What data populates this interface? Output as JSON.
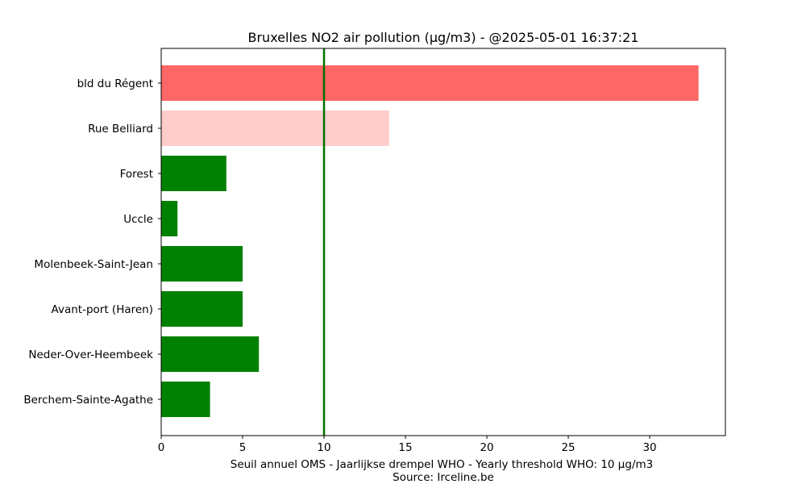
{
  "chart_data": {
    "type": "bar",
    "orientation": "horizontal",
    "title": "Bruxelles NO2 air pollution (µg/m3) - @2025-05-01 16:37:21",
    "xlabel_line1": "Seuil annuel OMS - Jaarlijkse drempel WHO - Yearly threshold WHO: 10 µg/m3",
    "xlabel_line2": "Source: Irceline.be",
    "xlim": [
      0,
      34.65
    ],
    "xticks": [
      "0",
      "5",
      "10",
      "15",
      "20",
      "25",
      "30"
    ],
    "xtick_values": [
      0,
      5,
      10,
      15,
      20,
      25,
      30
    ],
    "threshold": 10,
    "threshold_color": "#007000",
    "grid": false,
    "categories": [
      "bld du Régent",
      "Rue Belliard",
      "Forest",
      "Uccle",
      "Molenbeek-Saint-Jean",
      "Avant-port (Haren)",
      "Neder-Over-Heembeek",
      "Berchem-Sainte-Agathe"
    ],
    "values": [
      33,
      14,
      4,
      1,
      5,
      5,
      6,
      3
    ],
    "colors": [
      "#ff6666",
      "#ffcccc",
      "#008000",
      "#008000",
      "#008000",
      "#008000",
      "#008000",
      "#008000"
    ]
  }
}
